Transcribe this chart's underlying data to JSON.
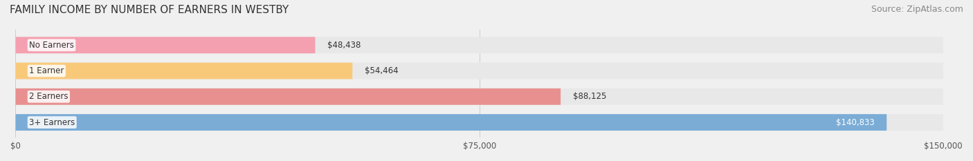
{
  "title": "FAMILY INCOME BY NUMBER OF EARNERS IN WESTBY",
  "source": "Source: ZipAtlas.com",
  "categories": [
    "No Earners",
    "1 Earner",
    "2 Earners",
    "3+ Earners"
  ],
  "values": [
    48438,
    54464,
    88125,
    140833
  ],
  "bar_colors": [
    "#f4a0b0",
    "#f9c97a",
    "#e89090",
    "#7aacd6"
  ],
  "label_colors": [
    "#000000",
    "#000000",
    "#000000",
    "#ffffff"
  ],
  "value_labels": [
    "$48,438",
    "$54,464",
    "$88,125",
    "$140,833"
  ],
  "xlim": [
    0,
    150000
  ],
  "xticks": [
    0,
    75000,
    150000
  ],
  "xtick_labels": [
    "$0",
    "$75,000",
    "$150,000"
  ],
  "background_color": "#f0f0f0",
  "bar_background": "#e8e8e8",
  "title_fontsize": 11,
  "source_fontsize": 9,
  "bar_height": 0.62
}
